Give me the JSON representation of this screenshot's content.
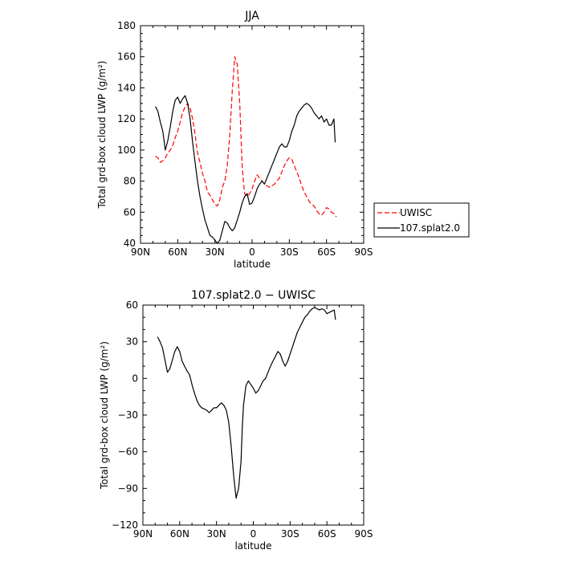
{
  "chart_data": [
    {
      "type": "line",
      "title": "JJA",
      "xlabel": "latitude",
      "ylabel": "Total grd-box cloud LWP (g/m²)",
      "xlim": [
        90,
        -90
      ],
      "ylim": [
        40,
        180
      ],
      "x_ticks": [
        90,
        60,
        30,
        0,
        -30,
        -60,
        -90
      ],
      "x_tick_labels": [
        "90N",
        "60N",
        "30N",
        "0",
        "30S",
        "60S",
        "90S"
      ],
      "y_ticks": [
        40,
        60,
        80,
        100,
        120,
        140,
        160,
        180
      ],
      "y_tick_labels": [
        "40",
        "60",
        "80",
        "100",
        "120",
        "140",
        "160",
        "180"
      ],
      "legend_position": "right",
      "series": [
        {
          "name": "UWISC",
          "color": "#ff0000",
          "dash": "dashed",
          "x": [
            78,
            76,
            74,
            72,
            70,
            68,
            66,
            64,
            62,
            60,
            58,
            56,
            54,
            52,
            50,
            48,
            46,
            44,
            42,
            40,
            38,
            36,
            34,
            32,
            30,
            28,
            26,
            24,
            22,
            20,
            18,
            16,
            14,
            12,
            10,
            9,
            8,
            7,
            6,
            4,
            2,
            0,
            -2,
            -4,
            -6,
            -8,
            -10,
            -12,
            -14,
            -16,
            -18,
            -20,
            -22,
            -24,
            -26,
            -28,
            -30,
            -32,
            -34,
            -36,
            -38,
            -40,
            -42,
            -44,
            -46,
            -48,
            -50,
            -52,
            -54,
            -56,
            -58,
            -60,
            -62,
            -64,
            -66,
            -68
          ],
          "y": [
            96,
            95,
            92,
            93,
            95,
            98,
            100,
            103,
            108,
            112,
            118,
            124,
            128,
            130,
            127,
            120,
            110,
            98,
            92,
            85,
            80,
            73,
            71,
            68,
            65,
            64,
            68,
            76,
            80,
            90,
            110,
            138,
            160,
            155,
            130,
            110,
            90,
            80,
            72,
            70,
            72,
            75,
            80,
            84,
            82,
            80,
            78,
            77,
            76,
            77,
            78,
            80,
            82,
            86,
            90,
            93,
            95,
            94,
            90,
            86,
            82,
            77,
            73,
            70,
            67,
            65,
            64,
            61,
            59,
            58,
            60,
            63,
            62,
            60,
            59,
            57
          ]
        },
        {
          "name": "107.splat2.0",
          "color": "#000000",
          "dash": "solid",
          "x": [
            78,
            76,
            74,
            72,
            70,
            68,
            66,
            64,
            62,
            60,
            58,
            56,
            54,
            52,
            50,
            48,
            46,
            44,
            42,
            40,
            38,
            36,
            34,
            32,
            30,
            28,
            26,
            24,
            22,
            20,
            18,
            16,
            14,
            12,
            10,
            8,
            6,
            4,
            2,
            0,
            -2,
            -4,
            -6,
            -8,
            -10,
            -12,
            -14,
            -16,
            -18,
            -20,
            -22,
            -24,
            -26,
            -28,
            -30,
            -32,
            -34,
            -36,
            -38,
            -40,
            -42,
            -44,
            -46,
            -48,
            -50,
            -52,
            -54,
            -56,
            -58,
            -60,
            -62,
            -64,
            -66,
            -67
          ],
          "y": [
            128,
            125,
            118,
            112,
            100,
            106,
            115,
            125,
            132,
            134,
            130,
            133,
            135,
            130,
            120,
            105,
            92,
            80,
            70,
            62,
            55,
            50,
            45,
            44,
            42,
            40,
            42,
            48,
            54,
            53,
            50,
            48,
            50,
            55,
            60,
            66,
            70,
            72,
            65,
            66,
            70,
            75,
            78,
            80,
            78,
            82,
            86,
            90,
            94,
            98,
            102,
            104,
            102,
            102,
            106,
            112,
            116,
            122,
            125,
            127,
            129,
            130,
            129,
            127,
            124,
            122,
            120,
            122,
            118,
            120,
            116,
            116,
            120,
            105
          ]
        }
      ]
    },
    {
      "type": "line",
      "title": "107.splat2.0 − UWISC",
      "xlabel": "latitude",
      "ylabel": "Total grd-box cloud LWP (g/m²)",
      "xlim": [
        90,
        -90
      ],
      "ylim": [
        -120,
        60
      ],
      "x_ticks": [
        90,
        60,
        30,
        0,
        -30,
        -60,
        -90
      ],
      "x_tick_labels": [
        "90N",
        "60N",
        "30N",
        "0",
        "30S",
        "60S",
        "90S"
      ],
      "y_ticks": [
        -120,
        -90,
        -60,
        -30,
        0,
        30,
        60
      ],
      "y_tick_labels": [
        "−120",
        "−90",
        "−60",
        "−30",
        "0",
        "30",
        "60"
      ],
      "series": [
        {
          "name": "",
          "color": "#000000",
          "dash": "solid",
          "x": [
            78,
            76,
            74,
            72,
            70,
            68,
            66,
            64,
            62,
            60,
            58,
            56,
            54,
            52,
            50,
            48,
            46,
            44,
            42,
            40,
            38,
            36,
            34,
            32,
            30,
            28,
            26,
            24,
            22,
            20,
            18,
            16,
            14,
            12,
            10,
            9,
            8,
            7,
            6,
            4,
            2,
            0,
            -2,
            -4,
            -6,
            -8,
            -10,
            -12,
            -14,
            -16,
            -18,
            -20,
            -22,
            -24,
            -26,
            -28,
            -30,
            -32,
            -34,
            -36,
            -38,
            -40,
            -42,
            -44,
            -46,
            -48,
            -50,
            -52,
            -54,
            -56,
            -58,
            -60,
            -62,
            -64,
            -66,
            -67
          ],
          "y": [
            34,
            30,
            25,
            15,
            5,
            8,
            15,
            22,
            26,
            22,
            14,
            10,
            6,
            3,
            -5,
            -12,
            -18,
            -22,
            -24,
            -25,
            -26,
            -28,
            -26,
            -24,
            -24,
            -22,
            -20,
            -22,
            -26,
            -36,
            -56,
            -80,
            -98,
            -90,
            -68,
            -40,
            -22,
            -14,
            -6,
            -2,
            -5,
            -8,
            -12,
            -10,
            -6,
            -2,
            0,
            5,
            10,
            14,
            18,
            22,
            20,
            14,
            10,
            14,
            20,
            26,
            32,
            38,
            42,
            46,
            50,
            52,
            55,
            57,
            58,
            57,
            56,
            57,
            56,
            53,
            54,
            55,
            56,
            48
          ]
        }
      ]
    }
  ]
}
